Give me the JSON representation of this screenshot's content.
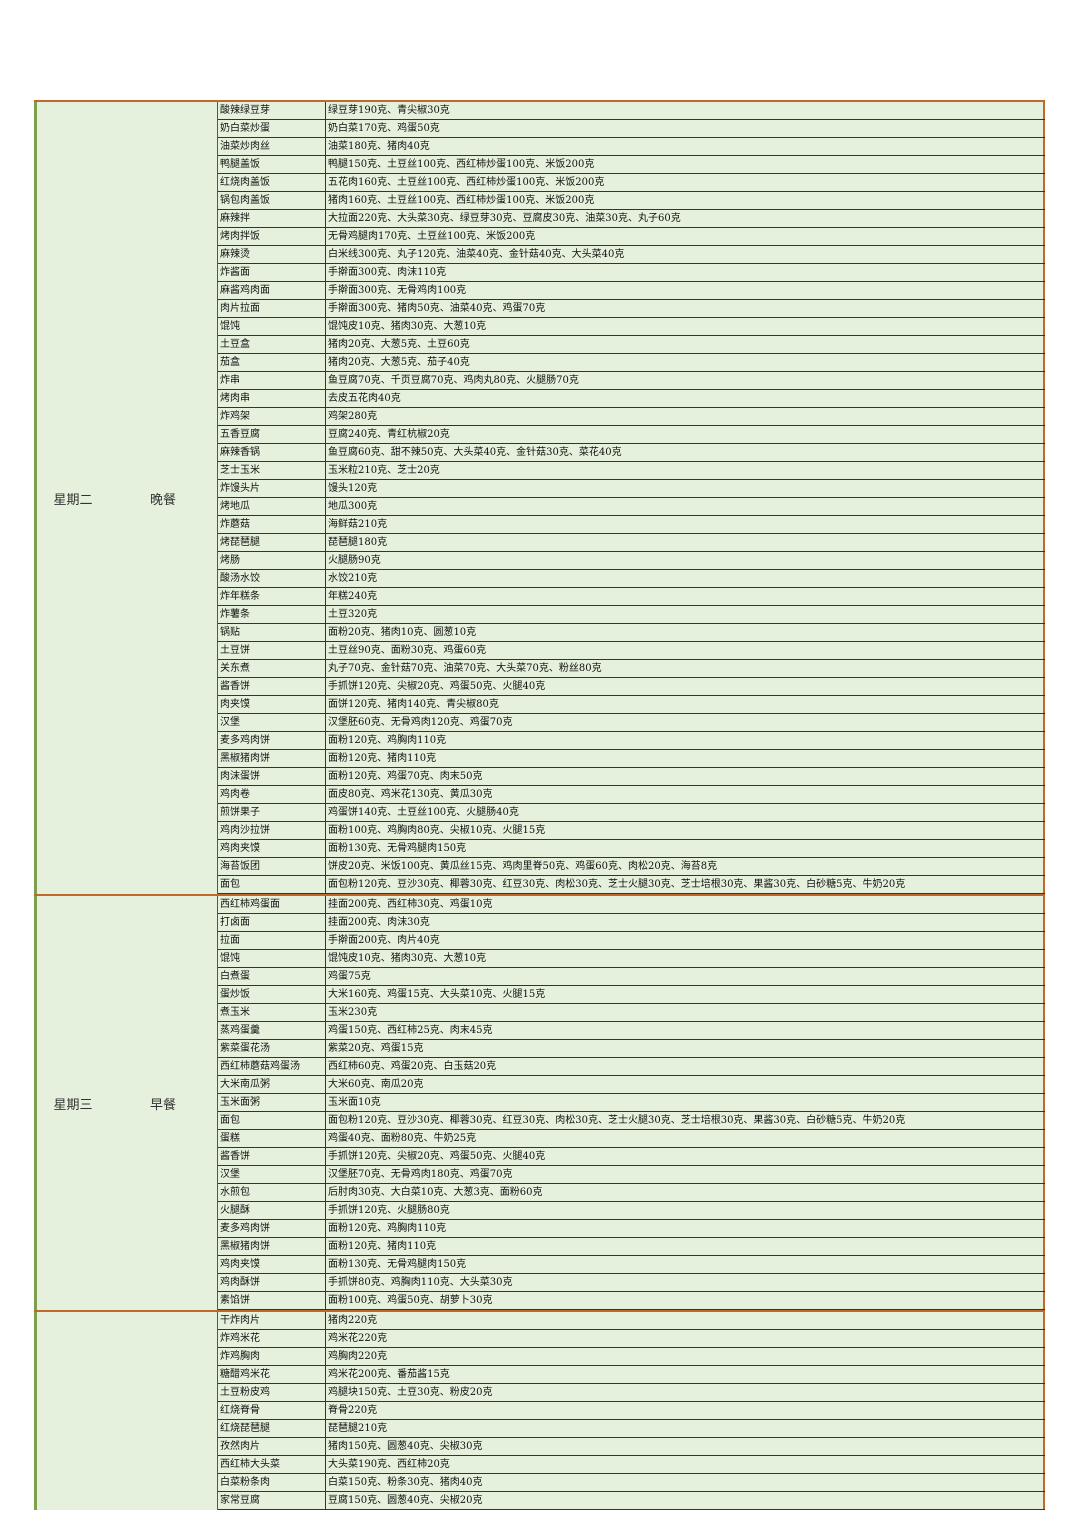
{
  "blocks": [
    {
      "day": "星期二",
      "meal": "晚餐",
      "rows": [
        [
          "酸辣绿豆芽",
          "绿豆芽190克、青尖椒30克"
        ],
        [
          "奶白菜炒蛋",
          "奶白菜170克、鸡蛋50克"
        ],
        [
          "油菜炒肉丝",
          "油菜180克、猪肉40克"
        ],
        [
          "鸭腿盖饭",
          "鸭腿150克、土豆丝100克、西红柿炒蛋100克、米饭200克"
        ],
        [
          "红烧肉盖饭",
          "五花肉160克、土豆丝100克、西红柿炒蛋100克、米饭200克"
        ],
        [
          "锅包肉盖饭",
          "猪肉160克、土豆丝100克、西红柿炒蛋100克、米饭200克"
        ],
        [
          "麻辣拌",
          "大拉面220克、大头菜30克、绿豆芽30克、豆腐皮30克、油菜30克、丸子60克"
        ],
        [
          "烤肉拌饭",
          "无骨鸡腿肉170克、土豆丝100克、米饭200克"
        ],
        [
          "麻辣烫",
          "白米线300克、丸子120克、油菜40克、金针菇40克、大头菜40克"
        ],
        [
          "炸酱面",
          "手擀面300克、肉沫110克"
        ],
        [
          "麻酱鸡肉面",
          "手擀面300克、无骨鸡肉100克"
        ],
        [
          "肉片拉面",
          "手擀面300克、猪肉50克、油菜40克、鸡蛋70克"
        ],
        [
          "馄饨",
          "馄饨皮10克、猪肉30克、大葱10克"
        ],
        [
          "土豆盒",
          "猪肉20克、大葱5克、土豆60克"
        ],
        [
          "茄盒",
          "猪肉20克、大葱5克、茄子40克"
        ],
        [
          "炸串",
          "鱼豆腐70克、千页豆腐70克、鸡肉丸80克、火腿肠70克"
        ],
        [
          "烤肉串",
          "去皮五花肉40克"
        ],
        [
          "炸鸡架",
          "鸡架280克"
        ],
        [
          "五香豆腐",
          "豆腐240克、青红杭椒20克"
        ],
        [
          "麻辣香锅",
          "鱼豆腐60克、甜不辣50克、大头菜40克、金针菇30克、菜花40克"
        ],
        [
          "芝士玉米",
          "玉米粒210克、芝士20克"
        ],
        [
          "炸馒头片",
          "馒头120克"
        ],
        [
          "烤地瓜",
          "地瓜300克"
        ],
        [
          "炸蘑菇",
          "海鲜菇210克"
        ],
        [
          "烤琵琶腿",
          "琵琶腿180克"
        ],
        [
          "烤肠",
          "火腿肠90克"
        ],
        [
          "酸汤水饺",
          "水饺210克"
        ],
        [
          "炸年糕条",
          "年糕240克"
        ],
        [
          "炸薯条",
          "土豆320克"
        ],
        [
          "锅贴",
          "面粉20克、猪肉10克、圆葱10克"
        ],
        [
          "土豆饼",
          "土豆丝90克、面粉30克、鸡蛋60克"
        ],
        [
          "关东煮",
          "丸子70克、金针菇70克、油菜70克、大头菜70克、粉丝80克"
        ],
        [
          "酱香饼",
          "手抓饼120克、尖椒20克、鸡蛋50克、火腿40克"
        ],
        [
          "肉夹馍",
          "面饼120克、猪肉140克、青尖椒80克"
        ],
        [
          "汉堡",
          "汉堡胚60克、无骨鸡肉120克、鸡蛋70克"
        ],
        [
          "麦多鸡肉饼",
          "面粉120克、鸡胸肉110克"
        ],
        [
          "黑椒猪肉饼",
          "面粉120克、猪肉110克"
        ],
        [
          "肉沫蛋饼",
          "面粉120克、鸡蛋70克、肉末50克"
        ],
        [
          "鸡肉卷",
          "面皮80克、鸡米花130克、黄瓜30克"
        ],
        [
          "煎饼果子",
          "鸡蛋饼140克、土豆丝100克、火腿肠40克"
        ],
        [
          "鸡肉沙拉饼",
          "面粉100克、鸡胸肉80克、尖椒10克、火腿15克"
        ],
        [
          "鸡肉夹馍",
          "面粉130克、无骨鸡腿肉150克"
        ],
        [
          "海苔饭团",
          "饼皮20克、米饭100克、黄瓜丝15克、鸡肉里脊50克、鸡蛋60克、肉松20克、海苔8克"
        ],
        [
          "面包",
          "面包粉120克、豆沙30克、椰蓉30克、红豆30克、肉松30克、芝士火腿30克、芝士培根30克、果酱30克、白砂糖5克、牛奶20克"
        ]
      ]
    },
    {
      "day": "星期三",
      "meal": "早餐",
      "rows": [
        [
          "西红柿鸡蛋面",
          "挂面200克、西红柿30克、鸡蛋10克"
        ],
        [
          "打卤面",
          "挂面200克、肉沫30克"
        ],
        [
          "拉面",
          "手擀面200克、肉片40克"
        ],
        [
          "馄饨",
          "馄饨皮10克、猪肉30克、大葱10克"
        ],
        [
          "白煮蛋",
          "鸡蛋75克"
        ],
        [
          "蛋炒饭",
          "大米160克、鸡蛋15克、大头菜10克、火腿15克"
        ],
        [
          "煮玉米",
          "玉米230克"
        ],
        [
          "蒸鸡蛋羹",
          "鸡蛋150克、西红柿25克、肉末45克"
        ],
        [
          "紫菜蛋花汤",
          "紫菜20克、鸡蛋15克"
        ],
        [
          "西红柿蘑菇鸡蛋汤",
          "西红柿60克、鸡蛋20克、白玉菇20克"
        ],
        [
          "大米南瓜粥",
          "大米60克、南瓜20克"
        ],
        [
          "玉米面粥",
          "玉米面10克"
        ],
        [
          "面包",
          "面包粉120克、豆沙30克、椰蓉30克、红豆30克、肉松30克、芝士火腿30克、芝士培根30克、果酱30克、白砂糖5克、牛奶20克"
        ],
        [
          "蛋糕",
          "鸡蛋40克、面粉80克、牛奶25克"
        ],
        [
          "酱香饼",
          "手抓饼120克、尖椒20克、鸡蛋50克、火腿40克"
        ],
        [
          "汉堡",
          "汉堡胚70克、无骨鸡肉180克、鸡蛋70克"
        ],
        [
          "水煎包",
          "后肘肉30克、大白菜10克、大葱3克、面粉60克"
        ],
        [
          "火腿酥",
          "手抓饼120克、火腿肠80克"
        ],
        [
          "麦多鸡肉饼",
          "面粉120克、鸡胸肉110克"
        ],
        [
          "黑椒猪肉饼",
          "面粉120克、猪肉110克"
        ],
        [
          "鸡肉夹馍",
          "面粉130克、无骨鸡腿肉150克"
        ],
        [
          "鸡肉酥饼",
          "手抓饼80克、鸡胸肉110克、大头菜30克"
        ],
        [
          "素馅饼",
          "面粉100克、鸡蛋50克、胡萝卜30克"
        ]
      ]
    },
    {
      "day": "",
      "meal": "",
      "rows": [
        [
          "干炸肉片",
          "猪肉220克"
        ],
        [
          "炸鸡米花",
          "鸡米花220克"
        ],
        [
          "炸鸡胸肉",
          "鸡胸肉220克"
        ],
        [
          "糖醋鸡米花",
          "鸡米花200克、番茄酱15克"
        ],
        [
          "土豆粉皮鸡",
          "鸡腿块150克、土豆30克、粉皮20克"
        ],
        [
          "红烧脊骨",
          "脊骨220克"
        ],
        [
          "红烧琵琶腿",
          "琵琶腿210克"
        ],
        [
          "孜然肉片",
          "猪肉150克、圆葱40克、尖椒30克"
        ],
        [
          "西红柿大头菜",
          "大头菜190克、西红柿20克"
        ],
        [
          "白菜粉条肉",
          "白菜150克、粉条30克、猪肉40克"
        ],
        [
          "家常豆腐",
          "豆腐150克、圆葱40克、尖椒20克"
        ]
      ]
    }
  ]
}
